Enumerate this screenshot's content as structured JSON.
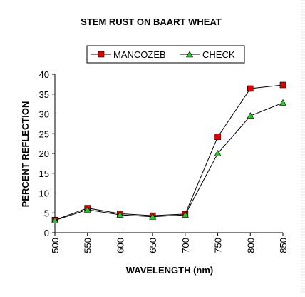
{
  "chart_data": {
    "type": "line",
    "title": "STEM RUST ON BAART WHEAT",
    "xlabel": "WAVELENGTH (nm)",
    "ylabel": "PERCENT REFLECTION",
    "x": [
      500,
      550,
      600,
      650,
      700,
      750,
      800,
      850
    ],
    "x_tick_labels": [
      "500",
      "550",
      "600",
      "650",
      "700",
      "750",
      "800",
      "850"
    ],
    "y_ticks": [
      0,
      5,
      10,
      15,
      20,
      25,
      30,
      35,
      40
    ],
    "y_tick_labels": [
      "0",
      "5",
      "10",
      "15",
      "20",
      "25",
      "30",
      "35",
      "40"
    ],
    "ylim": [
      0,
      40
    ],
    "grid": false,
    "legend_position": "top",
    "series": [
      {
        "name": "MANCOZEB",
        "color": "#e00000",
        "marker": "square",
        "values": [
          3.2,
          6.2,
          4.8,
          4.3,
          4.7,
          24.2,
          36.4,
          37.3
        ]
      },
      {
        "name": "CHECK",
        "color": "#22cc22",
        "marker": "triangle",
        "values": [
          3.1,
          5.8,
          4.5,
          4.0,
          4.5,
          20.0,
          29.5,
          32.8
        ]
      }
    ]
  }
}
